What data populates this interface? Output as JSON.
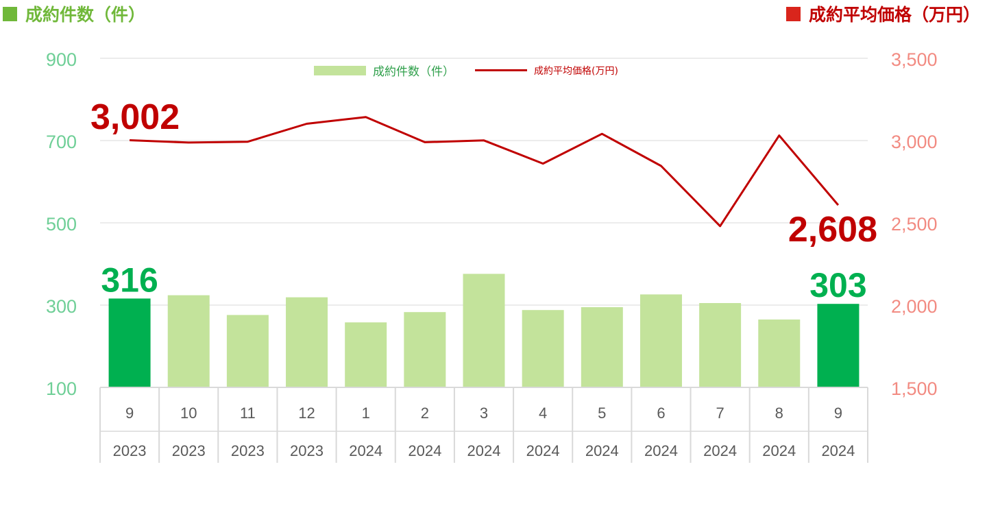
{
  "header": {
    "left_title": "成約件数（件）",
    "right_title": "成約平均価格（万円）"
  },
  "legend": {
    "bar_label": "成約件数（件）",
    "line_label": "成約平均価格(万円)"
  },
  "colors": {
    "bar": "#c3e39b",
    "bar_highlight": "#00b050",
    "line": "#c00000",
    "left_axis": "#6fcf97",
    "right_axis": "#f28b82",
    "grid": "#d9d9d9"
  },
  "chart_data": {
    "type": "bar",
    "categories": [
      {
        "month": "9",
        "year": "2023"
      },
      {
        "month": "10",
        "year": "2023"
      },
      {
        "month": "11",
        "year": "2023"
      },
      {
        "month": "12",
        "year": "2023"
      },
      {
        "month": "1",
        "year": "2024"
      },
      {
        "month": "2",
        "year": "2024"
      },
      {
        "month": "3",
        "year": "2024"
      },
      {
        "month": "4",
        "year": "2024"
      },
      {
        "month": "5",
        "year": "2024"
      },
      {
        "month": "6",
        "year": "2024"
      },
      {
        "month": "7",
        "year": "2024"
      },
      {
        "month": "8",
        "year": "2024"
      },
      {
        "month": "9",
        "year": "2024"
      }
    ],
    "series": [
      {
        "name": "成約件数（件）",
        "type": "bar",
        "axis": "left",
        "values": [
          316,
          324,
          276,
          319,
          258,
          283,
          376,
          288,
          295,
          326,
          305,
          265,
          303
        ],
        "highlight_indices": [
          0,
          12
        ]
      },
      {
        "name": "成約平均価格(万円)",
        "type": "line",
        "axis": "right",
        "values": [
          3002,
          2988,
          2993,
          3102,
          3143,
          2990,
          3001,
          2860,
          3041,
          2846,
          2480,
          3031,
          2608
        ]
      }
    ],
    "left_axis": {
      "ylim": [
        100,
        900
      ],
      "ticks": [
        100,
        300,
        500,
        700,
        900
      ],
      "tick_labels": [
        "100",
        "300",
        "500",
        "700",
        "900"
      ]
    },
    "right_axis": {
      "ylim": [
        1500,
        3500
      ],
      "ticks": [
        1500,
        2000,
        2500,
        3000,
        3500
      ],
      "tick_labels": [
        "1,500",
        "2,000",
        "2,500",
        "3,000",
        "3,500"
      ]
    },
    "annotations": [
      {
        "series": "成約件数（件）",
        "index": 0,
        "text": "316"
      },
      {
        "series": "成約件数（件）",
        "index": 12,
        "text": "303"
      },
      {
        "series": "成約平均価格(万円)",
        "index": 0,
        "text": "3,002"
      },
      {
        "series": "成約平均価格(万円)",
        "index": 12,
        "text": "2,608"
      }
    ],
    "gridlines": "horizontal",
    "legend_position": "top-center"
  }
}
